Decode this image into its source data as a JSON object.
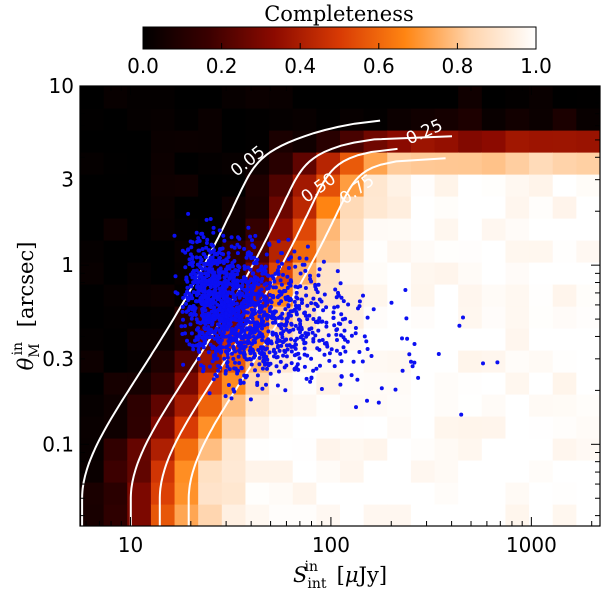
{
  "chart_data": {
    "type": "heatmap",
    "xlabel": "S_int^in [μJy]",
    "ylabel": "θ_M^in [arcsec]",
    "xscale": "log",
    "yscale": "log",
    "xlim": [
      5.6,
      2200
    ],
    "ylim": [
      0.035,
      10
    ],
    "x_ticks": [
      10,
      100,
      1000
    ],
    "x_tick_labels": [
      "10",
      "100",
      "1000"
    ],
    "y_ticks": [
      0.1,
      0.3,
      1,
      3,
      10
    ],
    "y_tick_labels": [
      "0.1",
      "0.3",
      "1",
      "3",
      "10"
    ],
    "colorbar": {
      "title": "Completeness",
      "min": 0.0,
      "max": 1.0,
      "ticks": [
        0.0,
        0.2,
        0.4,
        0.6,
        0.8,
        1.0
      ],
      "tick_labels": [
        "0.0",
        "0.2",
        "0.4",
        "0.6",
        "0.8",
        "1.0"
      ],
      "colormap": [
        "#000000",
        "#3a0000",
        "#8c0a00",
        "#d83a04",
        "#ff8512",
        "#ffd4ac",
        "#ffffff"
      ]
    },
    "contour_levels": [
      {
        "level": 0.05,
        "label": "0.05",
        "color": "#ffffff"
      },
      {
        "level": 0.25,
        "label": "0.25",
        "color": "#ffffff"
      },
      {
        "level": 0.5,
        "label": "0.50",
        "color": "#ffffff"
      },
      {
        "level": 0.75,
        "label": "0.75",
        "color": "#ffffff"
      }
    ],
    "points_color": "#0b0ff2",
    "points_description": "detected sources, concentrated at S ≈ 15–60 μJy and θ ≈ 0.3–1.5 arcsec, extending to ~1500 μJy",
    "grid": false,
    "legend": "none"
  }
}
